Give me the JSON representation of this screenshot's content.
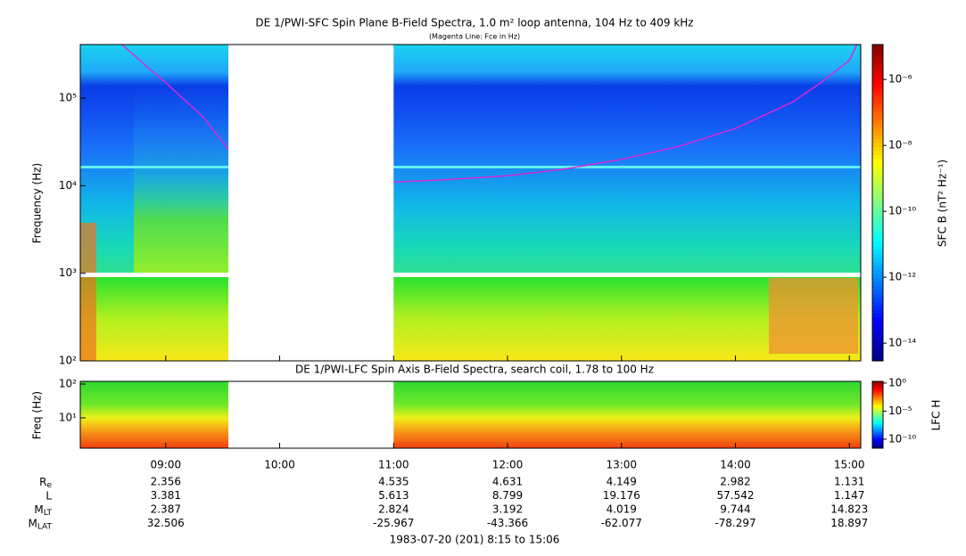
{
  "chart_data": [
    {
      "type": "spectrogram",
      "title": "DE 1/PWI-SFC  Spin Plane B-Field Spectra, 1.0 m² loop antenna, 104 Hz to 409 kHz",
      "subtitle": "(Magenta Line: Fce in Hz)",
      "y_label": "Frequency (Hz)",
      "log_y": true,
      "ylim": [
        100,
        409000
      ],
      "yticks": [
        {
          "value": 100,
          "label": "10²"
        },
        {
          "value": 1000,
          "label": "10³"
        },
        {
          "value": 10000,
          "label": "10⁴"
        },
        {
          "value": 100000,
          "label": "10⁵"
        }
      ],
      "xlim": [
        "8:15",
        "15:06"
      ],
      "xticks": [
        "09:00",
        "10:00",
        "11:00",
        "12:00",
        "13:00",
        "14:00",
        "15:00"
      ],
      "gaps": [
        [
          "09:33",
          "11:00"
        ]
      ],
      "series": [
        {
          "color": "#d62ad6",
          "x": [
            "8:37",
            "8:50",
            "9:00",
            "9:10",
            "9:20",
            "9:33",
            "10:00",
            "11:00",
            "11:30",
            "12:00",
            "12:30",
            "13:00",
            "13:30",
            "14:00",
            "14:30",
            "14:45",
            "15:00",
            "15:04"
          ],
          "values": [
            409000,
            230000,
            150000,
            95000,
            60000,
            26000,
            null,
            11000,
            11800,
            13000,
            15500,
            20000,
            28000,
            45000,
            90000,
            150000,
            270000,
            409000
          ]
        }
      ],
      "colorbar_label": "SFC B (nT² Hz⁻¹)",
      "clim": [
        2.9e-15,
        1.15e-05
      ],
      "cticks": [
        {
          "value": 1e-06,
          "label": "10⁻⁶"
        },
        {
          "value": 1e-08,
          "label": "10⁻⁸"
        },
        {
          "value": 1e-10,
          "label": "10⁻¹⁰"
        },
        {
          "value": 1e-12,
          "label": "10⁻¹²"
        },
        {
          "value": 1e-14,
          "label": "10⁻¹⁴"
        }
      ]
    },
    {
      "type": "spectrogram",
      "title": "DE 1/PWI-LFC  Spin Axis B-Field Spectra, search coil, 1.78 to 100 Hz",
      "y_label": "Freq (Hz)",
      "log_y": true,
      "ylim": [
        1.27,
        120
      ],
      "yticks": [
        {
          "value": 10,
          "label": "10¹"
        },
        {
          "value": 100,
          "label": "10²"
        }
      ],
      "xlim": [
        "8:15",
        "15:06"
      ],
      "xticks": [
        "09:00",
        "10:00",
        "11:00",
        "12:00",
        "13:00",
        "14:00",
        "15:00"
      ],
      "gaps": [
        [
          "09:33",
          "11:00"
        ]
      ],
      "colorbar_label": "LFC H",
      "clim": [
        2.5e-12,
        2
      ],
      "cticks": [
        {
          "value": 1,
          "label": "10⁰"
        },
        {
          "value": 1e-05,
          "label": "10⁻⁵"
        },
        {
          "value": 1e-10,
          "label": "10⁻¹⁰"
        }
      ]
    }
  ],
  "ephemeris": {
    "rows": [
      {
        "label": "R",
        "sub": "e",
        "values": [
          "2.356",
          null,
          "4.535",
          "4.631",
          "4.149",
          "2.982",
          "1.131"
        ]
      },
      {
        "label": "L",
        "values": [
          "3.381",
          null,
          "5.613",
          "8.799",
          "19.176",
          "57.542",
          "1.147"
        ]
      },
      {
        "label": "M",
        "sub": "LT",
        "values": [
          "2.387",
          null,
          "2.824",
          "3.192",
          "4.019",
          "9.744",
          "14.823"
        ]
      },
      {
        "label": "M",
        "sub": "LAT",
        "values": [
          "32.506",
          null,
          "-25.967",
          "-43.366",
          "-62.077",
          "-78.297",
          "18.897"
        ]
      }
    ]
  },
  "footer": "1983-07-20 (201) 8:15 to 15:06"
}
